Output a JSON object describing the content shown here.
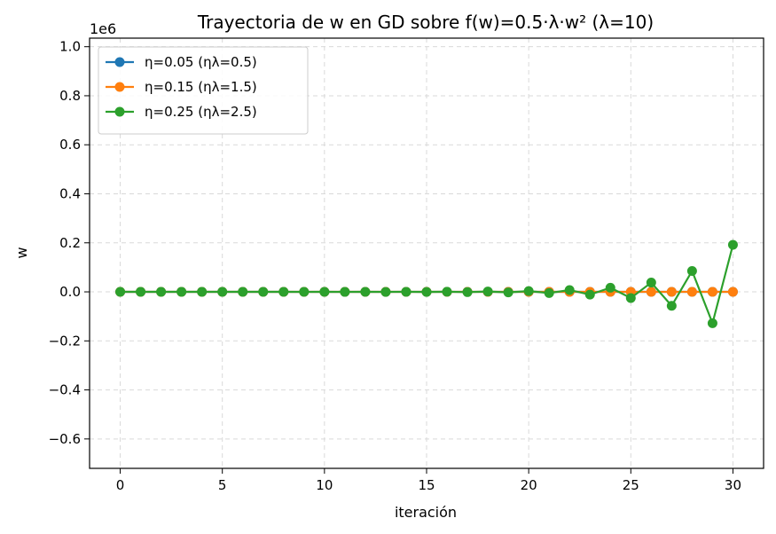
{
  "chart_data": {
    "type": "line",
    "title": "Trayectoria de w en GD sobre f(w)=0.5·λ·w² (λ=10)",
    "xlabel": "iteración",
    "ylabel": "w",
    "scale_offset_label": "1e6",
    "xlim": [
      -1.5,
      31.5
    ],
    "ylim": [
      -0.72,
      1.035
    ],
    "y_scale_factor": 1000000,
    "xticks": [
      0,
      5,
      10,
      15,
      20,
      25,
      30
    ],
    "yticks": [
      -0.6,
      -0.4,
      -0.2,
      0.0,
      0.2,
      0.4,
      0.6,
      0.8,
      1.0
    ],
    "ytick_labels": [
      "−0.6",
      "−0.4",
      "−0.2",
      "0.0",
      "0.2",
      "0.4",
      "0.6",
      "0.8",
      "1.0"
    ],
    "grid": true,
    "legend_position": "top-left",
    "x": [
      0,
      1,
      2,
      3,
      4,
      5,
      6,
      7,
      8,
      9,
      10,
      11,
      12,
      13,
      14,
      15,
      16,
      17,
      18,
      19,
      20,
      21,
      22,
      23,
      24,
      25,
      26,
      27,
      28,
      29,
      30
    ],
    "series": [
      {
        "name": "η=0.05 (ηλ=0.5)",
        "color": "#1f77b4",
        "values": [
          1,
          0.5,
          0.25,
          0.125,
          0.0625,
          0.03125,
          0.015625,
          0.0078125,
          0.00390625,
          0.001953125,
          0.0009765625,
          0.00048828125,
          0.000244140625,
          0.0001220703125,
          6.103515625e-05,
          3.0517578125e-05,
          1.52587890625e-05,
          7.62939453125e-06,
          3.814697265625e-06,
          1.9073486328125e-06,
          9.5367431640625e-07,
          4.76837158203125e-07,
          2.384185791015625e-07,
          1.1920928955078125e-07,
          5.960464477539063e-08,
          2.9802322387695312e-08,
          1.4901161193847656e-08,
          7.450580596923828e-09,
          3.725290298461914e-09,
          1.862645149230957e-09,
          9.313225746154785e-10
        ]
      },
      {
        "name": "η=0.15 (ηλ=1.5)",
        "color": "#ff7f0e",
        "values": [
          1,
          -0.5,
          0.25,
          -0.125,
          0.0625,
          -0.03125,
          0.015625,
          -0.0078125,
          0.00390625,
          -0.001953125,
          0.0009765625,
          -0.00048828125,
          0.000244140625,
          -0.0001220703125,
          6.103515625e-05,
          -3.0517578125e-05,
          1.52587890625e-05,
          -7.62939453125e-06,
          3.814697265625e-06,
          -1.9073486328125e-06,
          9.5367431640625e-07,
          -4.76837158203125e-07,
          2.384185791015625e-07,
          -1.1920928955078125e-07,
          5.960464477539063e-08,
          -2.9802322387695312e-08,
          1.4901161193847656e-08,
          -7.450580596923828e-09,
          3.725290298461914e-09,
          -1.862645149230957e-09,
          9.313225746154785e-10
        ]
      },
      {
        "name": "η=0.25 (ηλ=2.5)",
        "color": "#2ca02c",
        "values": [
          1,
          -1.5,
          2.25,
          -3.375,
          5.0625,
          -7.59375,
          11.390625,
          -17.0859375,
          25.62890625,
          -38.443359375,
          57.6650390625,
          -86.49755859375,
          129.746337890625,
          -194.6195068359375,
          291.92926025390625,
          -437.8938903808594,
          656.8408355712891,
          -985.2612533569336,
          1477.8918800354004,
          -2216.8378200531006,
          3325.256730079651,
          -4987.885095119476,
          7481.8276426792145,
          -11222.741464018822,
          16834.112196028233,
          -25251.16829404235,
          37876.75244106352,
          -56815.128661595285,
          85222.69299239293,
          -127834.03948858939,
          191751.0592328841
        ]
      }
    ]
  }
}
